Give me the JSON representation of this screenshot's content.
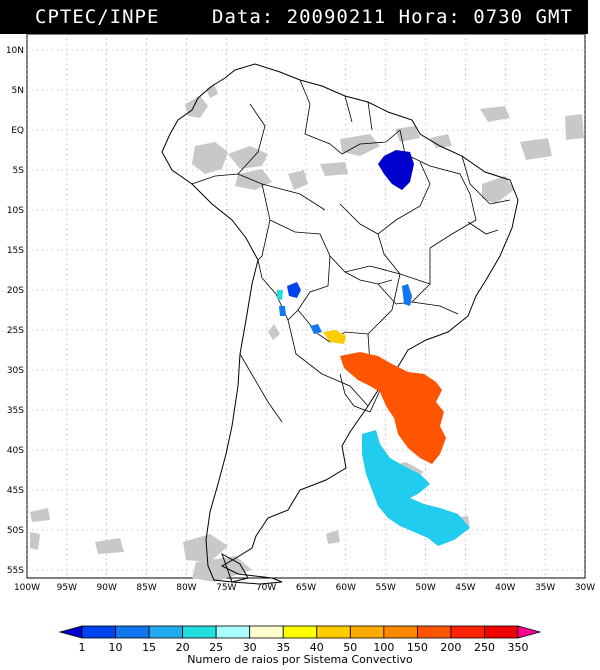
{
  "header": {
    "source": "CPTEC/INPE",
    "date_label": "Data:",
    "date": "20090211",
    "time_label": "Hora:",
    "time": "0730",
    "tz": "GMT"
  },
  "map": {
    "lat_labels": [
      "10N",
      "5N",
      "EQ",
      "5S",
      "10S",
      "15S",
      "20S",
      "25S",
      "30S",
      "35S",
      "40S",
      "45S",
      "50S",
      "55S"
    ],
    "lon_labels": [
      "100W",
      "95W",
      "90W",
      "85W",
      "80W",
      "75W",
      "70W",
      "65W",
      "60W",
      "55W",
      "50W",
      "45W",
      "40W",
      "35W",
      "30W"
    ],
    "extent": {
      "lon_min": -100,
      "lon_max": -30,
      "lat_min": -56,
      "lat_max": 12
    }
  },
  "legend": {
    "title": "Numero de raios por Sistema Convectivo",
    "ticks": [
      "1",
      "10",
      "15",
      "20",
      "25",
      "30",
      "35",
      "40",
      "50",
      "100",
      "150",
      "200",
      "250",
      "350"
    ],
    "colors": [
      "#0000cc",
      "#0044ee",
      "#1177ee",
      "#22aaee",
      "#22dddd",
      "#aaffff",
      "#ffffcc",
      "#ffff00",
      "#ffcc00",
      "#ffaa00",
      "#ff8800",
      "#ff5500",
      "#ff2200",
      "#ee0000",
      "#ff0099"
    ]
  },
  "systems": [
    {
      "name": "north-brazil-system",
      "class": "1",
      "color": "#0000cc"
    },
    {
      "name": "bolivia-system-a",
      "class": "10",
      "color": "#0044ee"
    },
    {
      "name": "bolivia-system-b",
      "class": "25",
      "color": "#22dddd"
    },
    {
      "name": "bolivia-system-c",
      "class": "10",
      "color": "#1177ee"
    },
    {
      "name": "minas-system",
      "class": "10",
      "color": "#1177ee"
    },
    {
      "name": "paraguay-system-a",
      "class": "10",
      "color": "#1177ee"
    },
    {
      "name": "paraguay-system-b",
      "class": "50",
      "color": "#ffcc00"
    },
    {
      "name": "uruguay-south-atlantic-system",
      "class": "200",
      "color": "#ff5500"
    },
    {
      "name": "patagonia-atlantic-system",
      "class": "20",
      "color": "#22ccee"
    }
  ]
}
